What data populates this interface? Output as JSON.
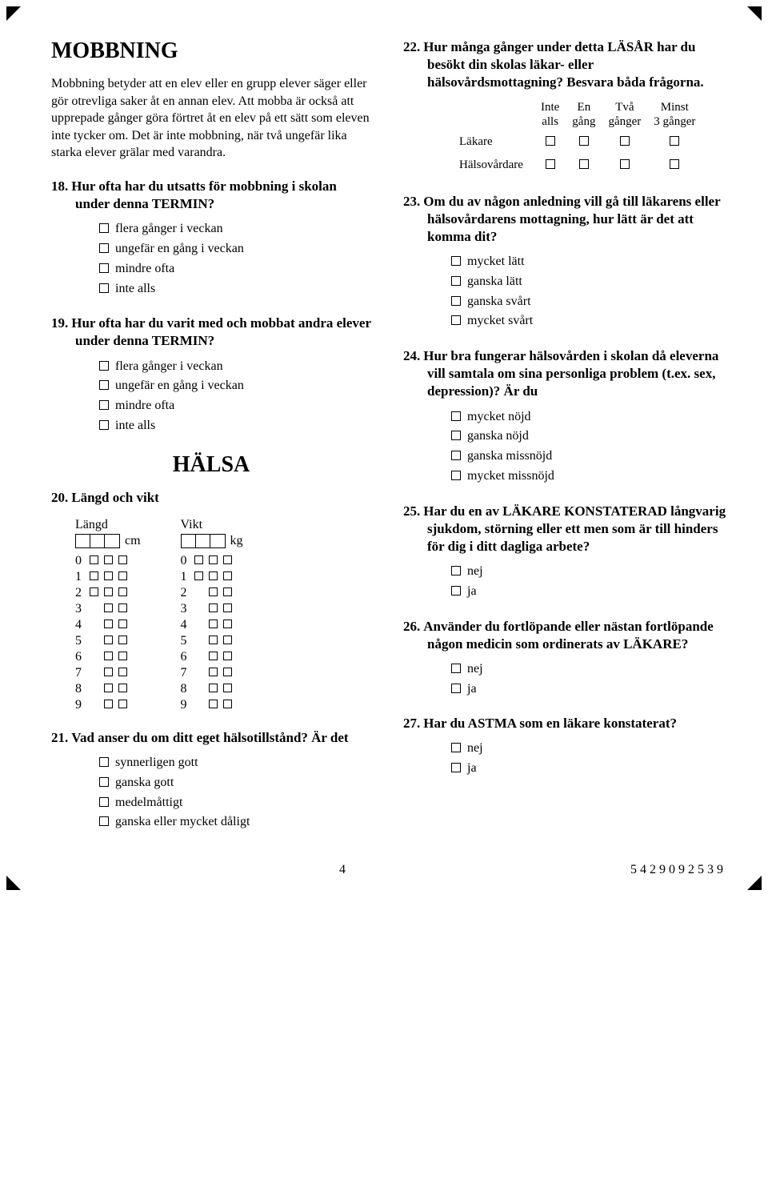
{
  "left": {
    "section1_title": "MOBBNING",
    "intro": "Mobbning betyder att en elev eller en grupp elever säger eller gör otrevliga saker åt en annan elev. Att mobba är också att upprepade gånger göra förtret åt en elev på ett sätt som eleven inte tycker om. Det är inte mobbning, när två ungefär lika starka elever grälar med varandra.",
    "q18": {
      "num": "18.",
      "text": "Hur ofta har du utsatts för mobbning i skolan under denna TERMIN?",
      "options": [
        "flera gånger i veckan",
        "ungefär en gång i veckan",
        "mindre ofta",
        "inte alls"
      ]
    },
    "q19": {
      "num": "19.",
      "text": "Hur ofta har du varit med och mobbat andra elever under denna TERMIN?",
      "options": [
        "flera gånger i veckan",
        "ungefär en gång i veckan",
        "mindre ofta",
        "inte alls"
      ]
    },
    "section2_title": "HÄLSA",
    "q20": {
      "num": "20.",
      "text": "Längd och vikt",
      "length_label": "Längd",
      "weight_label": "Vikt",
      "cm": "cm",
      "kg": "kg",
      "digits": [
        "0",
        "1",
        "2",
        "3",
        "4",
        "5",
        "6",
        "7",
        "8",
        "9"
      ],
      "length_boxcounts": [
        3,
        3,
        3,
        2,
        2,
        2,
        2,
        2,
        2,
        2
      ],
      "weight_boxcounts": [
        3,
        3,
        2,
        2,
        2,
        2,
        2,
        2,
        2,
        2
      ]
    },
    "q21": {
      "num": "21.",
      "text": "Vad anser du om ditt eget hälsotillstånd? Är det",
      "options": [
        "synnerligen gott",
        "ganska gott",
        "medelmåttigt",
        "ganska eller mycket dåligt"
      ]
    }
  },
  "right": {
    "q22": {
      "num": "22.",
      "text": "Hur många gånger under detta LÄSÅR har du besökt din skolas läkar- eller hälsovårdsmottagning? Besvara båda frågorna.",
      "headers": [
        "Inte alls",
        "En gång",
        "Två gånger",
        "Minst 3 gånger"
      ],
      "rows": [
        "Läkare",
        "Hälsovårdare"
      ]
    },
    "q23": {
      "num": "23.",
      "text": "Om du av någon anledning vill gå till läkarens eller hälsovårdarens mottagning, hur lätt är det att komma dit?",
      "options": [
        "mycket lätt",
        "ganska lätt",
        "ganska svårt",
        "mycket svårt"
      ]
    },
    "q24": {
      "num": "24.",
      "text": "Hur bra fungerar hälsovården i skolan då eleverna vill samtala om sina personliga problem (t.ex. sex, depression)? Är du",
      "options": [
        "mycket nöjd",
        "ganska nöjd",
        "ganska missnöjd",
        "mycket missnöjd"
      ]
    },
    "q25": {
      "num": "25.",
      "text": "Har du en av LÄKARE KONSTATERAD långvarig sjukdom, störning eller ett men som är till hinders för dig i ditt dagliga arbete?",
      "options": [
        "nej",
        "ja"
      ]
    },
    "q26": {
      "num": "26.",
      "text": "Använder du fortlöpande eller nästan fortlöpande någon medicin som ordinerats av LÄKARE?",
      "options": [
        "nej",
        "ja"
      ]
    },
    "q27": {
      "num": "27.",
      "text": "Har du ASTMA som en läkare konstaterat?",
      "options": [
        "nej",
        "ja"
      ]
    }
  },
  "footer": {
    "page": "4",
    "doc_id": "5429092539"
  }
}
